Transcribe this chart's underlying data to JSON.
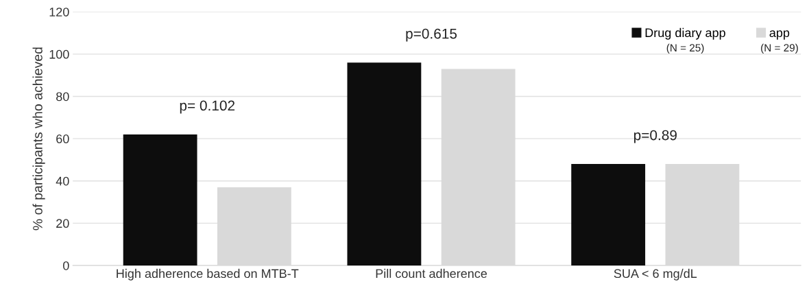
{
  "chart_data": {
    "type": "bar",
    "ylabel": "% of participants who achieved",
    "categories": [
      "High adherence based on MTB-T",
      "Pill count adherence",
      "SUA < 6 mg/dL"
    ],
    "series": [
      {
        "name": "Drug diary app",
        "color": "#0d0d0d",
        "values": [
          62,
          96,
          48
        ]
      },
      {
        "name": "app",
        "color": "#d9d9d9",
        "values": [
          37,
          93,
          48
        ]
      }
    ],
    "ylim": [
      0,
      120
    ],
    "yticks": [
      0,
      20,
      40,
      60,
      80,
      100,
      120
    ],
    "grid": "y",
    "legend": "top right",
    "annotations": [
      "p= 0.102",
      "p=0.615",
      "p=0.89",
      "(N = 25)",
      "(N = 29)"
    ]
  }
}
